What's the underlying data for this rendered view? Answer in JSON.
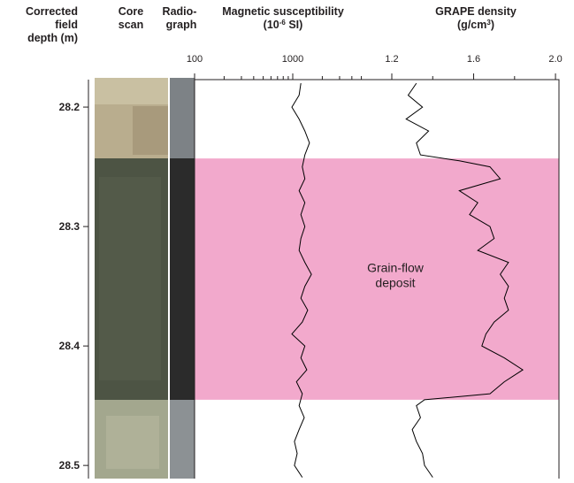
{
  "chart_data": [
    {
      "type": "line",
      "title": "Magnetic susceptibility",
      "unit": [
        "(10",
        "-6",
        " SI)"
      ],
      "y_label": [
        "Corrected",
        "field",
        "depth (m)"
      ],
      "y": [
        28.18,
        28.19,
        28.2,
        28.21,
        28.22,
        28.23,
        28.24,
        28.25,
        28.26,
        28.27,
        28.28,
        28.29,
        28.3,
        28.31,
        28.32,
        28.33,
        28.34,
        28.35,
        28.36,
        28.37,
        28.38,
        28.39,
        28.4,
        28.41,
        28.42,
        28.43,
        28.44,
        28.45,
        28.46,
        28.47,
        28.48,
        28.49,
        28.5,
        28.51
      ],
      "values": [
        1210,
        1160,
        980,
        1160,
        1330,
        1480,
        1330,
        1250,
        1330,
        1160,
        1330,
        1210,
        1330,
        1210,
        1160,
        1330,
        1550,
        1330,
        1210,
        1420,
        1250,
        980,
        1330,
        1210,
        1390,
        1090,
        1250,
        1160,
        1310,
        1160,
        1040,
        1110,
        1040,
        1250
      ],
      "color": "#000000",
      "xscale": "log",
      "xlim": [
        100,
        10000
      ],
      "xticks": [
        100,
        1000
      ],
      "minor_xticks": [
        200,
        300,
        400,
        500,
        600,
        700,
        800,
        900,
        2000,
        3000,
        4000,
        5000
      ],
      "ylim": [
        28.177,
        28.511
      ],
      "yticks": [
        28.2,
        28.3,
        28.4,
        28.5
      ]
    },
    {
      "type": "line",
      "title": "GRAPE density",
      "unit": [
        "(g/cm",
        "3",
        ")"
      ],
      "y": [
        28.18,
        28.19,
        28.2,
        28.21,
        28.22,
        28.23,
        28.24,
        28.245,
        28.25,
        28.26,
        28.27,
        28.28,
        28.29,
        28.3,
        28.31,
        28.32,
        28.33,
        28.34,
        28.35,
        28.36,
        28.37,
        28.38,
        28.39,
        28.4,
        28.41,
        28.42,
        28.43,
        28.44,
        28.445,
        28.45,
        28.46,
        28.47,
        28.48,
        28.49,
        28.5,
        28.51
      ],
      "values": [
        1.32,
        1.28,
        1.35,
        1.27,
        1.38,
        1.32,
        1.34,
        1.53,
        1.68,
        1.73,
        1.53,
        1.62,
        1.58,
        1.68,
        1.7,
        1.62,
        1.77,
        1.73,
        1.77,
        1.75,
        1.77,
        1.7,
        1.66,
        1.64,
        1.75,
        1.84,
        1.75,
        1.68,
        1.36,
        1.32,
        1.34,
        1.3,
        1.32,
        1.35,
        1.36,
        1.4
      ],
      "color": "#000000",
      "xlim": [
        1.2,
        2.017
      ],
      "xticks": [
        1.2,
        1.6,
        {
          "value": 2.0,
          "label": "2.0"
        }
      ],
      "minor_xticks": [
        1.4,
        1.8
      ],
      "ylim": [
        28.177,
        28.511
      ]
    }
  ],
  "facies": {
    "from": 28.243,
    "to": 28.445,
    "label": [
      "Grain-flow",
      "deposit"
    ],
    "color": "#f2a9cc"
  },
  "images": {
    "core_scan": [
      "Core",
      "scan"
    ],
    "radiograph": [
      "Radio-",
      "graph"
    ]
  }
}
